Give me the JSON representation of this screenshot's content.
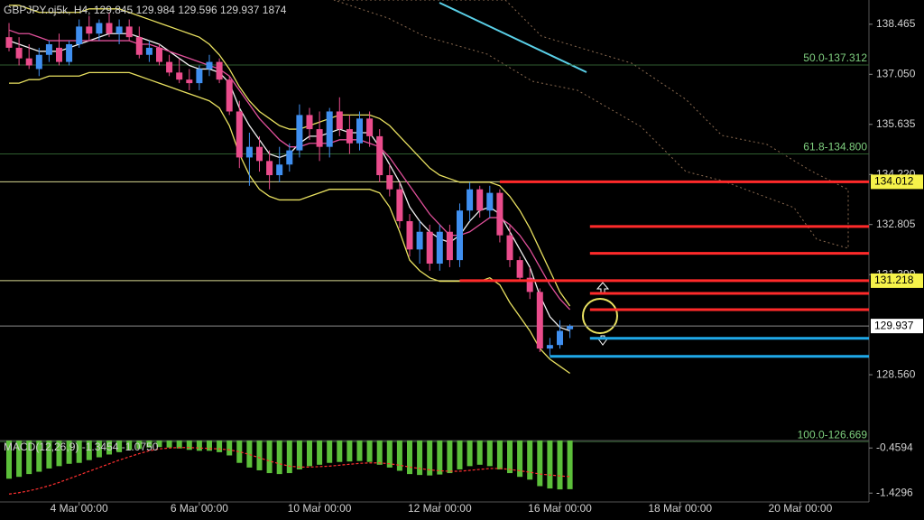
{
  "chart_data": {
    "type": "candlestick",
    "header": "GBPJPY.oj5k, H4,",
    "volume": 1874,
    "up_color": "#3f8ff0",
    "down_color": "#ea4c8c",
    "ylim": [
      126.7,
      139.15
    ],
    "yticks": [
      138.465,
      {
        "value": 137.05,
        "label": "137.050"
      },
      135.635,
      {
        "value": 134.22,
        "label": "134.220"
      },
      132.805,
      {
        "value": 131.39,
        "label": "131.390"
      },
      {
        "value": 128.56,
        "label": "128.560"
      }
    ],
    "xticks": [
      {
        "value": 7,
        "label": "4 Mar 00:00"
      },
      {
        "value": 19,
        "label": "6 Mar 00:00"
      },
      {
        "value": 31,
        "label": "10 Mar 00:00"
      },
      {
        "value": 43,
        "label": "12 Mar 00:00"
      },
      {
        "value": 55,
        "label": "16 Mar 00:00"
      },
      {
        "value": 67,
        "label": "18 Mar 00:00"
      },
      {
        "value": 79,
        "label": "20 Mar 00:00"
      }
    ],
    "candles": [
      {
        "o": 138.1,
        "h": 138.5,
        "l": 137.7,
        "c": 137.8
      },
      {
        "o": 137.8,
        "h": 138.1,
        "l": 137.3,
        "c": 137.5
      },
      {
        "o": 137.5,
        "h": 137.9,
        "l": 137.2,
        "c": 137.3
      },
      {
        "o": 137.2,
        "h": 137.8,
        "l": 137.0,
        "c": 137.6
      },
      {
        "o": 137.6,
        "h": 138.0,
        "l": 137.4,
        "c": 137.9
      },
      {
        "o": 137.8,
        "h": 138.2,
        "l": 137.3,
        "c": 137.4
      },
      {
        "o": 137.4,
        "h": 138.0,
        "l": 137.3,
        "c": 137.9
      },
      {
        "o": 137.9,
        "h": 138.6,
        "l": 137.8,
        "c": 138.4
      },
      {
        "o": 138.4,
        "h": 138.7,
        "l": 138.0,
        "c": 138.2
      },
      {
        "o": 138.2,
        "h": 138.6,
        "l": 138.0,
        "c": 138.5
      },
      {
        "o": 138.5,
        "h": 138.8,
        "l": 138.1,
        "c": 138.2
      },
      {
        "o": 138.2,
        "h": 138.6,
        "l": 137.9,
        "c": 138.4
      },
      {
        "o": 138.4,
        "h": 138.6,
        "l": 138.0,
        "c": 138.1
      },
      {
        "o": 138.1,
        "h": 138.4,
        "l": 137.5,
        "c": 137.6
      },
      {
        "o": 137.6,
        "h": 138.0,
        "l": 137.4,
        "c": 137.8
      },
      {
        "o": 137.8,
        "h": 137.9,
        "l": 137.3,
        "c": 137.4
      },
      {
        "o": 137.4,
        "h": 137.6,
        "l": 137.0,
        "c": 137.1
      },
      {
        "o": 137.1,
        "h": 137.5,
        "l": 136.8,
        "c": 136.9
      },
      {
        "o": 136.9,
        "h": 137.2,
        "l": 136.6,
        "c": 136.8
      },
      {
        "o": 136.8,
        "h": 137.3,
        "l": 136.6,
        "c": 137.2
      },
      {
        "o": 137.2,
        "h": 137.6,
        "l": 137.0,
        "c": 137.4
      },
      {
        "o": 137.4,
        "h": 137.5,
        "l": 136.8,
        "c": 136.9
      },
      {
        "o": 136.9,
        "h": 137.0,
        "l": 135.9,
        "c": 136.0
      },
      {
        "o": 136.0,
        "h": 136.3,
        "l": 134.4,
        "c": 134.7
      },
      {
        "o": 134.7,
        "h": 135.4,
        "l": 133.9,
        "c": 135.0
      },
      {
        "o": 135.0,
        "h": 135.3,
        "l": 134.3,
        "c": 134.6
      },
      {
        "o": 134.6,
        "h": 134.9,
        "l": 133.8,
        "c": 134.2
      },
      {
        "o": 134.2,
        "h": 135.0,
        "l": 134.0,
        "c": 134.5
      },
      {
        "o": 134.5,
        "h": 135.1,
        "l": 134.3,
        "c": 134.9
      },
      {
        "o": 134.9,
        "h": 136.2,
        "l": 134.7,
        "c": 135.9
      },
      {
        "o": 135.9,
        "h": 136.1,
        "l": 135.2,
        "c": 135.5
      },
      {
        "o": 135.5,
        "h": 136.0,
        "l": 134.6,
        "c": 135.0
      },
      {
        "o": 135.0,
        "h": 136.1,
        "l": 134.7,
        "c": 136.0
      },
      {
        "o": 136.0,
        "h": 136.4,
        "l": 135.3,
        "c": 135.5
      },
      {
        "o": 135.5,
        "h": 135.9,
        "l": 134.8,
        "c": 135.1
      },
      {
        "o": 135.1,
        "h": 136.0,
        "l": 134.9,
        "c": 135.8
      },
      {
        "o": 135.8,
        "h": 136.0,
        "l": 135.0,
        "c": 135.3
      },
      {
        "o": 135.3,
        "h": 135.5,
        "l": 134.0,
        "c": 134.2
      },
      {
        "o": 134.2,
        "h": 134.5,
        "l": 133.6,
        "c": 133.8
      },
      {
        "o": 133.8,
        "h": 134.0,
        "l": 132.7,
        "c": 132.9
      },
      {
        "o": 132.9,
        "h": 133.1,
        "l": 131.9,
        "c": 132.1
      },
      {
        "o": 132.1,
        "h": 132.9,
        "l": 131.7,
        "c": 132.6
      },
      {
        "o": 132.6,
        "h": 132.8,
        "l": 131.5,
        "c": 131.7
      },
      {
        "o": 131.7,
        "h": 132.8,
        "l": 131.5,
        "c": 132.6
      },
      {
        "o": 132.6,
        "h": 132.8,
        "l": 131.6,
        "c": 131.8
      },
      {
        "o": 131.8,
        "h": 133.4,
        "l": 131.6,
        "c": 133.2
      },
      {
        "o": 133.2,
        "h": 134.0,
        "l": 132.9,
        "c": 133.8
      },
      {
        "o": 133.8,
        "h": 133.9,
        "l": 133.0,
        "c": 133.2
      },
      {
        "o": 133.2,
        "h": 133.9,
        "l": 133.0,
        "c": 133.7
      },
      {
        "o": 133.7,
        "h": 133.8,
        "l": 132.3,
        "c": 132.5
      },
      {
        "o": 132.5,
        "h": 132.8,
        "l": 131.6,
        "c": 131.8
      },
      {
        "o": 131.8,
        "h": 131.9,
        "l": 131.2,
        "c": 131.3
      },
      {
        "o": 131.3,
        "h": 131.6,
        "l": 130.7,
        "c": 130.9
      },
      {
        "o": 130.9,
        "h": 131.0,
        "l": 129.2,
        "c": 129.3
      },
      {
        "o": 129.3,
        "h": 129.6,
        "l": 129.1,
        "c": 129.4
      },
      {
        "o": 129.4,
        "h": 130.1,
        "l": 129.3,
        "c": 129.8
      },
      {
        "o": 129.845,
        "h": 129.984,
        "l": 129.596,
        "c": 129.937
      }
    ],
    "lines": [
      {
        "color": "#f0f0f0",
        "values": [
          138.0,
          137.9,
          137.8,
          137.7,
          137.7,
          137.7,
          137.8,
          137.9,
          138.0,
          138.1,
          138.2,
          138.2,
          138.2,
          138.1,
          138.0,
          137.9,
          137.7,
          137.5,
          137.3,
          137.2,
          137.2,
          137.1,
          136.8,
          136.1,
          135.6,
          135.2,
          134.8,
          134.7,
          134.8,
          135.1,
          135.3,
          135.3,
          135.4,
          135.5,
          135.4,
          135.4,
          135.4,
          135.0,
          134.5,
          134.0,
          133.3,
          132.9,
          132.6,
          132.4,
          132.3,
          132.5,
          132.9,
          133.2,
          133.3,
          133.1,
          132.6,
          132.1,
          131.6,
          130.8,
          130.2,
          129.9,
          129.8
        ]
      },
      {
        "color": "#e0509a",
        "values": [
          138.3,
          138.2,
          138.2,
          138.1,
          138.0,
          138.0,
          138.0,
          138.0,
          138.0,
          138.0,
          138.0,
          138.0,
          138.0,
          137.9,
          137.9,
          137.8,
          137.7,
          137.6,
          137.5,
          137.4,
          137.3,
          137.2,
          137.0,
          136.6,
          136.2,
          135.8,
          135.5,
          135.2,
          135.0,
          135.0,
          135.1,
          135.1,
          135.1,
          135.2,
          135.2,
          135.2,
          135.1,
          135.0,
          134.7,
          134.3,
          133.9,
          133.5,
          133.1,
          132.8,
          132.5,
          132.5,
          132.6,
          132.8,
          133.0,
          133.0,
          132.8,
          132.5,
          132.1,
          131.6,
          131.1,
          130.7,
          130.4
        ]
      },
      {
        "color": "#e8e060",
        "values": [
          139.0,
          139.0,
          138.9,
          138.8,
          138.8,
          138.8,
          138.8,
          138.8,
          138.9,
          138.9,
          138.9,
          138.9,
          138.8,
          138.7,
          138.6,
          138.5,
          138.4,
          138.3,
          138.2,
          138.1,
          137.9,
          137.6,
          137.2,
          136.7,
          136.3,
          136.0,
          135.8,
          135.6,
          135.5,
          135.5,
          135.6,
          135.7,
          135.8,
          135.9,
          135.9,
          135.9,
          135.9,
          135.8,
          135.6,
          135.3,
          135.0,
          134.7,
          134.4,
          134.2,
          134.1,
          134.0,
          134.0,
          134.0,
          134.0,
          133.9,
          133.6,
          133.2,
          132.7,
          132.1,
          131.5,
          130.9,
          130.5
        ]
      },
      {
        "color": "#e8e060",
        "values": [
          136.8,
          136.8,
          136.9,
          136.9,
          137.0,
          137.0,
          137.0,
          137.0,
          137.1,
          137.1,
          137.1,
          137.1,
          137.1,
          137.0,
          136.9,
          136.8,
          136.7,
          136.6,
          136.5,
          136.4,
          136.3,
          136.1,
          135.6,
          134.8,
          134.2,
          133.8,
          133.6,
          133.5,
          133.5,
          133.5,
          133.6,
          133.7,
          133.8,
          133.8,
          133.8,
          133.8,
          133.8,
          133.7,
          133.3,
          132.6,
          131.8,
          131.5,
          131.3,
          131.2,
          131.2,
          131.2,
          131.2,
          131.2,
          131.3,
          131.1,
          130.6,
          130.2,
          129.8,
          129.3,
          129.0,
          128.8,
          128.6
        ]
      }
    ],
    "fib_levels": [
      {
        "label": "50.0-137.312",
        "value": 137.312
      },
      {
        "label": "61.8-134.800",
        "value": 134.8
      },
      {
        "label": "100.0-126.669",
        "value": 126.669
      }
    ],
    "hlines": [
      {
        "value": 134.012,
        "color": "#d8d890"
      },
      {
        "value": 131.218,
        "color": "#d8d890"
      },
      {
        "value": 129.937,
        "color": "#8a8a8a"
      }
    ],
    "levels": [
      {
        "value": 134.012,
        "color": "#ff2a2a",
        "start": 49
      },
      {
        "value": 132.75,
        "color": "#ff2a2a",
        "start": 58
      },
      {
        "value": 131.99,
        "color": "#ff2a2a",
        "start": 58
      },
      {
        "value": 131.218,
        "color": "#ff2a2a",
        "start": 45
      },
      {
        "value": 130.86,
        "color": "#ff2a2a",
        "start": 58
      },
      {
        "value": 130.4,
        "color": "#ff2a2a",
        "start": 58
      },
      {
        "value": 129.59,
        "color": "#1fa8e8",
        "start": 58
      },
      {
        "value": 129.08,
        "color": "#1fa8e8",
        "start": 54
      }
    ],
    "price_labels": [
      {
        "value": 134.012,
        "bg": "#f6f24a"
      },
      {
        "value": 131.218,
        "bg": "#f6f24a"
      },
      {
        "value": 129.937,
        "bg": "#ffffff"
      }
    ],
    "macd": {
      "label": "MACD(12,26,9)",
      "main": -1.3454,
      "signal_last": {
        "value": -1.075,
        "label": "-1.0750"
      },
      "ylim": [
        -1.6,
        -0.3
      ],
      "yticks": [
        -0.4594,
        -1.4296
      ],
      "bar_color": "#5cbf3a",
      "signal_color": "#ff3030",
      "histogram": [
        -1.12,
        -1.08,
        -1.02,
        -0.97,
        -0.9,
        -0.85,
        -0.8,
        -0.78,
        -0.72,
        -0.66,
        -0.6,
        -0.55,
        -0.5,
        -0.48,
        -0.45,
        -0.44,
        -0.45,
        -0.47,
        -0.5,
        -0.52,
        -0.52,
        -0.55,
        -0.62,
        -0.78,
        -0.88,
        -0.94,
        -1.0,
        -1.02,
        -1.0,
        -0.92,
        -0.85,
        -0.82,
        -0.78,
        -0.76,
        -0.75,
        -0.74,
        -0.76,
        -0.82,
        -0.88,
        -0.95,
        -1.02,
        -1.04,
        -1.05,
        -1.03,
        -1.0,
        -0.92,
        -0.85,
        -0.82,
        -0.85,
        -0.92,
        -1.0,
        -1.08,
        -1.14,
        -1.28,
        -1.33,
        -1.35,
        -1.3454
      ],
      "signal": [
        -1.45,
        -1.42,
        -1.38,
        -1.33,
        -1.27,
        -1.2,
        -1.12,
        -1.04,
        -0.96,
        -0.88,
        -0.8,
        -0.72,
        -0.65,
        -0.58,
        -0.52,
        -0.48,
        -0.46,
        -0.45,
        -0.45,
        -0.46,
        -0.47,
        -0.48,
        -0.5,
        -0.54,
        -0.6,
        -0.67,
        -0.74,
        -0.8,
        -0.85,
        -0.87,
        -0.87,
        -0.86,
        -0.85,
        -0.83,
        -0.81,
        -0.79,
        -0.78,
        -0.78,
        -0.8,
        -0.83,
        -0.87,
        -0.9,
        -0.93,
        -0.95,
        -0.96,
        -0.96,
        -0.94,
        -0.92,
        -0.9,
        -0.9,
        -0.92,
        -0.95,
        -0.98,
        -1.02,
        -1.04,
        -1.06,
        -1.075
      ]
    }
  }
}
